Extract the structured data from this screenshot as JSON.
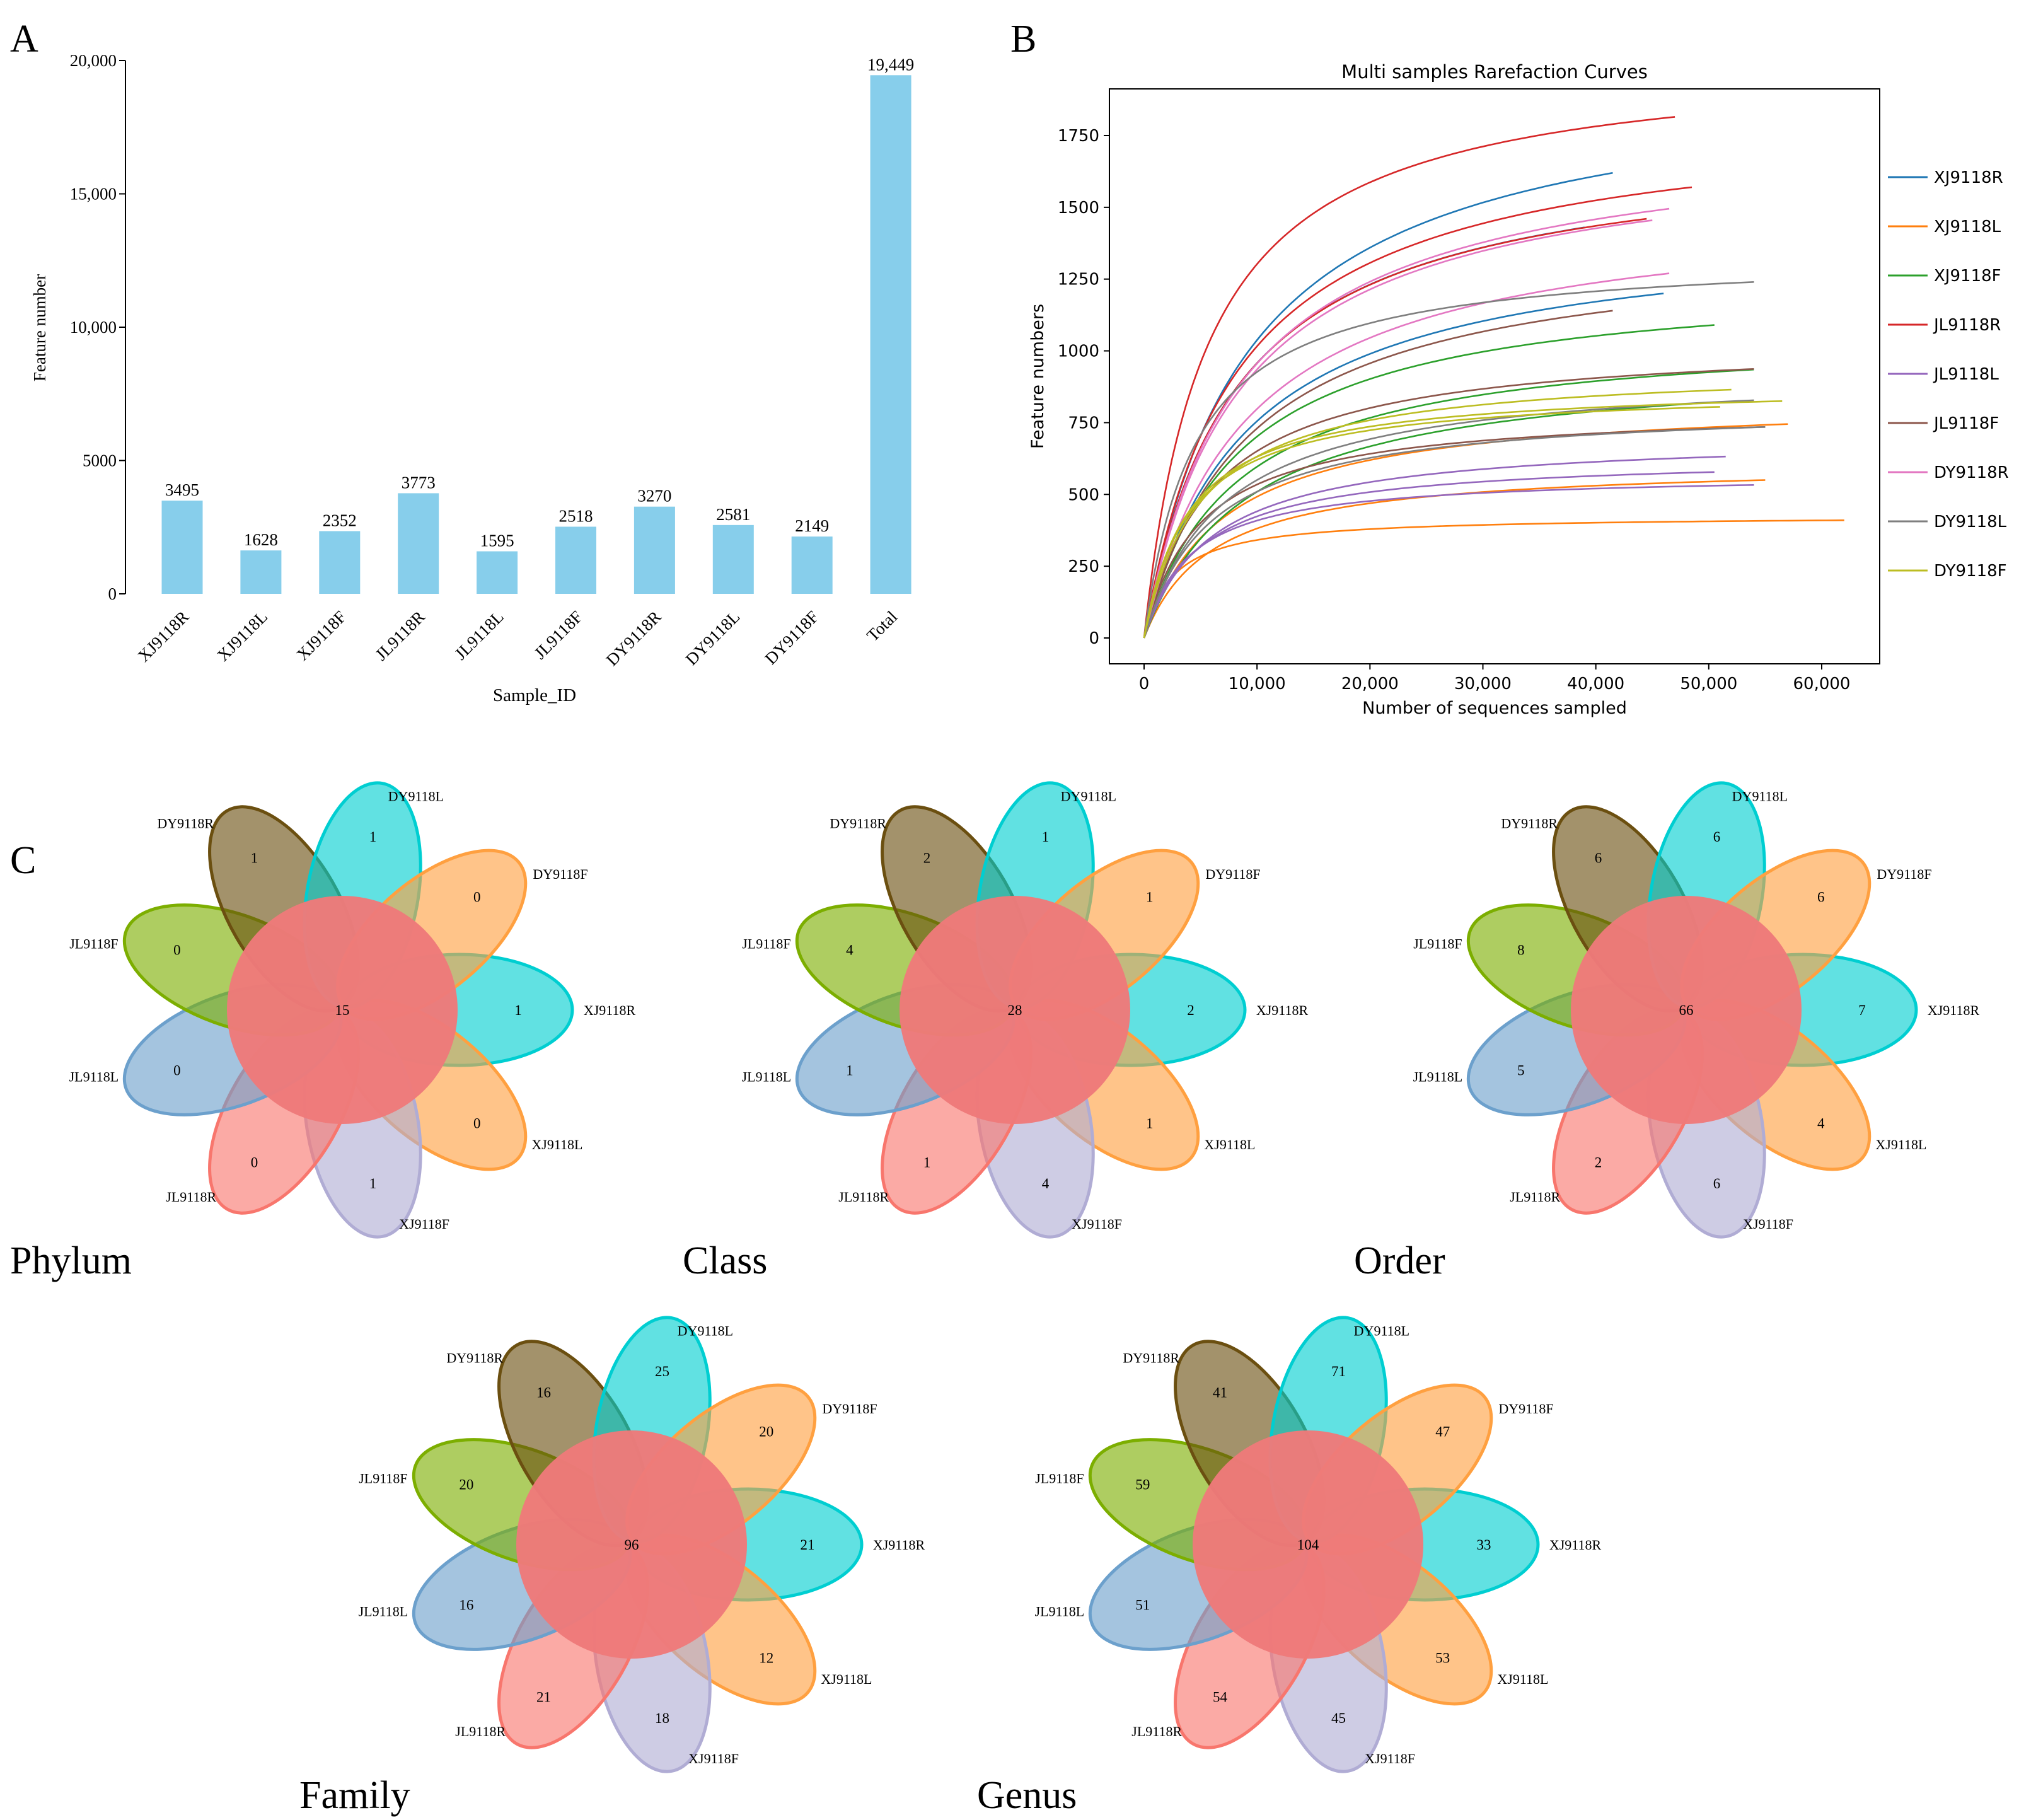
{
  "panel_labels": {
    "a": "A",
    "b": "B",
    "c": "C"
  },
  "chart_data": [
    {
      "type": "bar",
      "panel": "A",
      "title": "",
      "xlabel": "Sample_ID",
      "ylabel": "Feature number",
      "ylim": [
        0,
        20000
      ],
      "yticks": [
        0,
        5000,
        10000,
        15000,
        20000
      ],
      "ytick_labels": [
        "0",
        "5000",
        "10,000",
        "15,000",
        "20,000"
      ],
      "categories": [
        "XJ9118R",
        "XJ9118L",
        "XJ9118F",
        "JL9118R",
        "JL9118L",
        "JL9118F",
        "DY9118R",
        "DY9118L",
        "DY9118F",
        "Total"
      ],
      "values": [
        3495,
        1628,
        2352,
        3773,
        1595,
        2518,
        3270,
        2581,
        2149,
        19449
      ],
      "value_labels": [
        "3495",
        "1628",
        "2352",
        "3773",
        "1595",
        "2518",
        "3270",
        "2581",
        "2149",
        "19,449"
      ],
      "bar_color": "#87CEEB"
    },
    {
      "type": "line",
      "panel": "B",
      "title": "Multi samples Rarefaction Curves",
      "xlabel": "Number of sequences sampled",
      "ylabel": "Feature numbers",
      "xlim": [
        -4000,
        65500
      ],
      "ylim": [
        -100,
        1900
      ],
      "xticks": [
        0,
        10000,
        20000,
        30000,
        40000,
        50000,
        60000
      ],
      "xtick_labels": [
        "0",
        "10,000",
        "20,000",
        "30,000",
        "40,000",
        "50,000",
        "60,000"
      ],
      "yticks": [
        0,
        250,
        500,
        750,
        1000,
        1250,
        1500,
        1750
      ],
      "ytick_labels": [
        "0",
        "250",
        "500",
        "750",
        "1000",
        "1250",
        "1500",
        "1750"
      ],
      "legend_position": "right-outside",
      "curve_model": "saturating y = A*x/(k+x) passing through end point",
      "series": [
        {
          "name": "XJ9118R",
          "color": "#1f77b4",
          "curves": [
            {
              "x_end": 41500,
              "y_end": 1620,
              "k": 9000
            },
            {
              "x_end": 39000,
              "y_end": 1430,
              "k": 8000
            },
            {
              "x_end": 46000,
              "y_end": 1200,
              "k": 9000
            }
          ]
        },
        {
          "name": "XJ9118L",
          "color": "#ff7f0e",
          "curves": [
            {
              "x_end": 57000,
              "y_end": 745,
              "k": 7000
            },
            {
              "x_end": 55000,
              "y_end": 550,
              "k": 6000
            },
            {
              "x_end": 62000,
              "y_end": 410,
              "k": 2500
            }
          ]
        },
        {
          "name": "XJ9118F",
          "color": "#2ca02c",
          "curves": [
            {
              "x_end": 50500,
              "y_end": 1090,
              "k": 8000
            },
            {
              "x_end": 54000,
              "y_end": 935,
              "k": 8000
            },
            {
              "x_end": 50000,
              "y_end": 820,
              "k": 9000
            }
          ]
        },
        {
          "name": "JL9118R",
          "color": "#d62728",
          "curves": [
            {
              "x_end": 47000,
              "y_end": 1815,
              "k": 5600
            },
            {
              "x_end": 48500,
              "y_end": 1570,
              "k": 8000
            },
            {
              "x_end": 44500,
              "y_end": 1460,
              "k": 8000
            }
          ]
        },
        {
          "name": "JL9118L",
          "color": "#9467bd",
          "curves": [
            {
              "x_end": 51500,
              "y_end": 632,
              "k": 6000
            },
            {
              "x_end": 50500,
              "y_end": 578,
              "k": 5000
            },
            {
              "x_end": 54000,
              "y_end": 533,
              "k": 4000
            }
          ]
        },
        {
          "name": "JL9118F",
          "color": "#8c564b",
          "curves": [
            {
              "x_end": 41500,
              "y_end": 1140,
              "k": 9000
            },
            {
              "x_end": 54000,
              "y_end": 937,
              "k": 6000
            },
            {
              "x_end": 55000,
              "y_end": 735,
              "k": 5000
            }
          ]
        },
        {
          "name": "DY9118R",
          "color": "#e377c2",
          "curves": [
            {
              "x_end": 46500,
              "y_end": 1495,
              "k": 8500
            },
            {
              "x_end": 45000,
              "y_end": 1455,
              "k": 8500
            },
            {
              "x_end": 46500,
              "y_end": 1270,
              "k": 9000
            }
          ]
        },
        {
          "name": "DY9118L",
          "color": "#7f7f7f",
          "curves": [
            {
              "x_end": 54000,
              "y_end": 1240,
              "k": 4500
            },
            {
              "x_end": 54000,
              "y_end": 828,
              "k": 7000
            },
            {
              "x_end": 55000,
              "y_end": 735,
              "k": 6000
            }
          ]
        },
        {
          "name": "DY9118F",
          "color": "#bcbd22",
          "curves": [
            {
              "x_end": 52000,
              "y_end": 865,
              "k": 5000
            },
            {
              "x_end": 56500,
              "y_end": 825,
              "k": 4000
            },
            {
              "x_end": 51000,
              "y_end": 805,
              "k": 4000
            }
          ]
        }
      ]
    },
    {
      "type": "venn",
      "panel": "C",
      "samples": [
        "XJ9118R",
        "XJ9118L",
        "XJ9118F",
        "JL9118R",
        "JL9118L",
        "JL9118F",
        "DY9118R",
        "DY9118L",
        "DY9118F"
      ],
      "petal_colors": [
        "#00CED1",
        "#FFA040",
        "#B0ACD4",
        "#F8766D",
        "#6CA0CC",
        "#7CAE00",
        "#6B4F10",
        "#00CED1",
        "#FFA040"
      ],
      "core_color": "#EE7A7A",
      "diagrams": [
        {
          "title": "Phylum",
          "core": 15,
          "unique": [
            1,
            0,
            1,
            0,
            0,
            0,
            1,
            1,
            0
          ]
        },
        {
          "title": "Class",
          "core": 28,
          "unique": [
            2,
            1,
            4,
            1,
            1,
            4,
            2,
            1,
            1
          ]
        },
        {
          "title": "Order",
          "core": 66,
          "unique": [
            7,
            4,
            6,
            2,
            5,
            8,
            6,
            6,
            6
          ]
        },
        {
          "title": "Family",
          "core": 96,
          "unique": [
            21,
            12,
            18,
            21,
            16,
            20,
            16,
            25,
            20
          ]
        },
        {
          "title": "Genus",
          "core": 104,
          "unique": [
            33,
            53,
            45,
            54,
            51,
            59,
            41,
            71,
            47
          ]
        }
      ]
    }
  ]
}
